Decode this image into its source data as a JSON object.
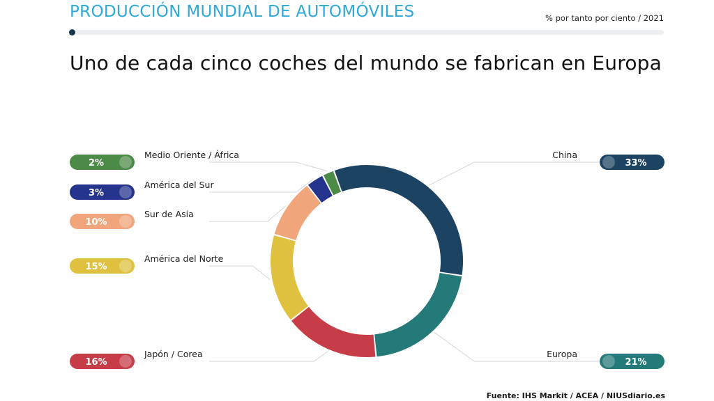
{
  "header": {
    "title": "PRODUCCIÓN MUNDIAL DE AUTOMÓVILES",
    "unit": "% por tanto por ciento / 2021"
  },
  "headline": "Uno de cada cinco coches del mundo se fabrican en Europa",
  "source": "Fuente: IHS Markit / ACEA / NIUSdiario.es",
  "colors": {
    "title": "#2fa9d8",
    "track": "#eceef0"
  },
  "chart_data": {
    "type": "donut",
    "unit": "%",
    "segments": [
      {
        "label": "China",
        "value": 33,
        "display": "33%",
        "color": "#1c4462",
        "side": "right"
      },
      {
        "label": "Europa",
        "value": 21,
        "display": "21%",
        "color": "#247a78",
        "side": "right"
      },
      {
        "label": "Japón / Corea",
        "value": 16,
        "display": "16%",
        "color": "#c63d47",
        "side": "left"
      },
      {
        "label": "América del Norte",
        "value": 15,
        "display": "15%",
        "color": "#dfc13f",
        "side": "left"
      },
      {
        "label": "Sur de Asia",
        "value": 10,
        "display": "10%",
        "color": "#f0a57a",
        "side": "left"
      },
      {
        "label": "América del Sur",
        "value": 3,
        "display": "3%",
        "color": "#25358e",
        "side": "left"
      },
      {
        "label": "Medio Oriente / África",
        "value": 2,
        "display": "2%",
        "color": "#4c8a48",
        "side": "left"
      }
    ]
  }
}
